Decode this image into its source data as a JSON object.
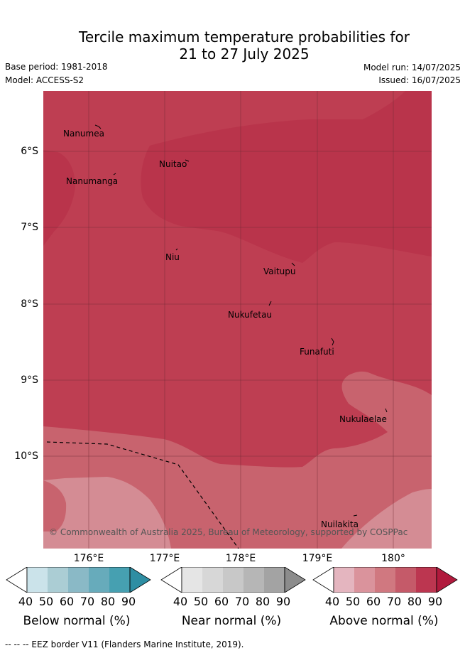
{
  "header": {
    "title_line1": "Tercile maximum temperature probabilities for",
    "title_line2": "21 to 27 July 2025",
    "base_period": "Base period: 1981-2018",
    "model": "Model: ACCESS-S2",
    "model_run": "Model run: 14/07/2025",
    "issued": "Issued: 16/07/2025"
  },
  "map": {
    "latitude_labels": [
      "6°S",
      "7°S",
      "8°S",
      "9°S",
      "10°S"
    ],
    "longitude_labels": [
      "176°E",
      "177°E",
      "178°E",
      "179°E",
      "180°"
    ],
    "islands": [
      "Nanumea",
      "Nuitao",
      "Nanumanga",
      "Niu",
      "Vaitupu",
      "Nukufetau",
      "Funafuti",
      "Nukulaelae",
      "Nuilakita"
    ],
    "copyright": "© Commonwealth of Australia 2025, Bureau of Meteorology, supported by COSPPac",
    "colors": {
      "above_80": "#be3e52",
      "above_90": "#b9344b",
      "above_70": "#c8636e",
      "above_60": "#d48c94",
      "grid": "#6b2a33"
    }
  },
  "legends": [
    {
      "title": "Below normal (%)",
      "ticks": [
        "40",
        "50",
        "60",
        "70",
        "80",
        "90"
      ],
      "colors": [
        "#ffffff",
        "#cbe3ea",
        "#abcdd4",
        "#8ab9c6",
        "#67abbb",
        "#46a0b1",
        "#2e8ea3"
      ]
    },
    {
      "title": "Near normal (%)",
      "ticks": [
        "40",
        "50",
        "60",
        "70",
        "80",
        "90"
      ],
      "colors": [
        "#ffffff",
        "#e5e5e5",
        "#d7d7d7",
        "#c8c8c8",
        "#b6b6b6",
        "#a3a3a3",
        "#8c8c8c"
      ]
    },
    {
      "title": "Above normal (%)",
      "ticks": [
        "40",
        "50",
        "60",
        "70",
        "80",
        "90"
      ],
      "colors": [
        "#ffffff",
        "#e4b5bf",
        "#da939c",
        "#d07880",
        "#c55a69",
        "#bc3650",
        "#b11a3d"
      ]
    }
  ],
  "footer": "--  --  -- EEZ border V11 (Flanders Marine Institute, 2019)."
}
